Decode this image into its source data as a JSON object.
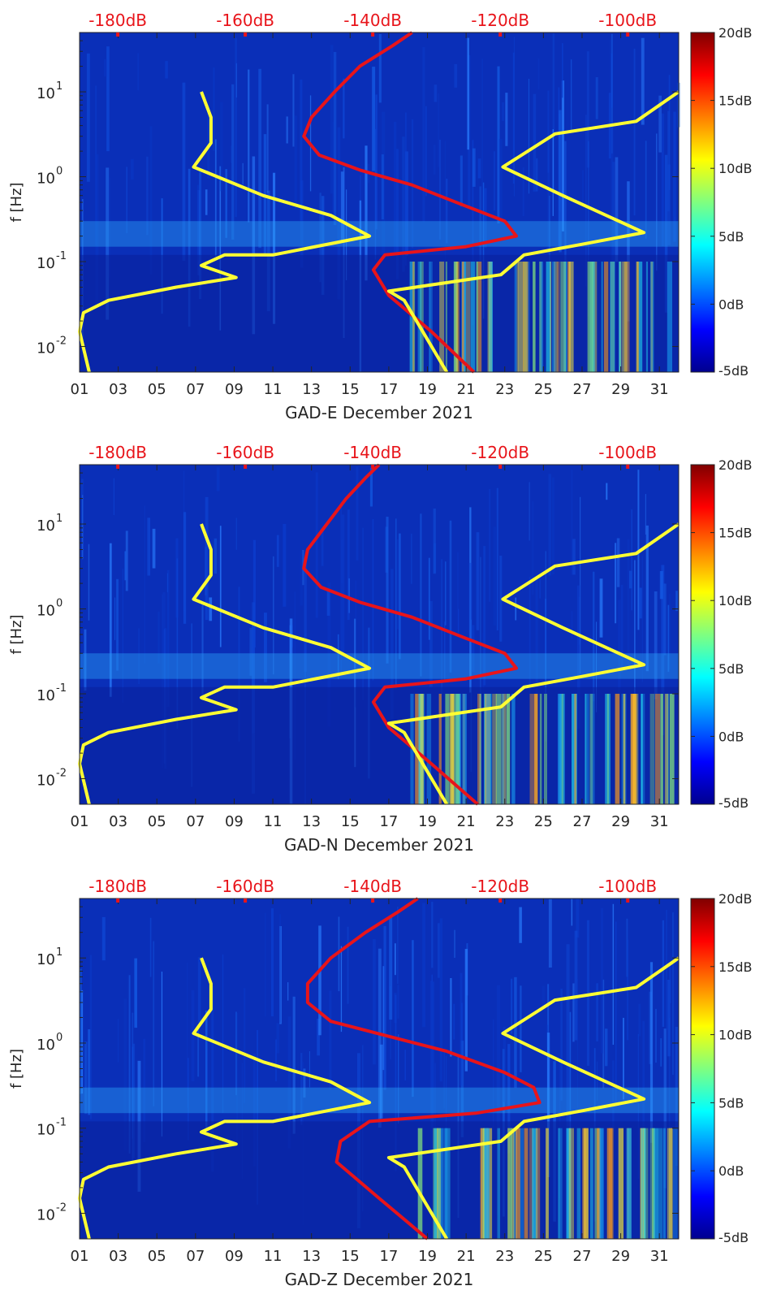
{
  "chart_data": [
    {
      "type": "heatmap",
      "xlabel": "GAD-E December 2021",
      "ylabel": "f [Hz]",
      "x_ticks": [
        "01",
        "03",
        "05",
        "07",
        "09",
        "11",
        "13",
        "15",
        "17",
        "19",
        "21",
        "23",
        "25",
        "27",
        "29",
        "31"
      ],
      "x_range": [
        1,
        32
      ],
      "y_scale": "log",
      "y_range": [
        0.005,
        50
      ],
      "y_ticks": [
        {
          "value": 0.01,
          "base": "10",
          "exp": "-2"
        },
        {
          "value": 0.1,
          "base": "10",
          "exp": "-1"
        },
        {
          "value": 1,
          "base": "10",
          "exp": "0"
        },
        {
          "value": 10,
          "base": "10",
          "exp": "1"
        }
      ],
      "top_axis": {
        "labels": [
          "-180dB",
          "-160dB",
          "-140dB",
          "-120dB",
          "-100dB"
        ],
        "values": [
          -180,
          -160,
          -140,
          -120,
          -100
        ],
        "range": [
          -186,
          -92
        ],
        "color": "#e8141a"
      },
      "colorbar": {
        "labels": [
          "20dB",
          "15dB",
          "10dB",
          "5dB",
          "0dB",
          "-5dB"
        ],
        "values": [
          20,
          15,
          10,
          5,
          0,
          -5
        ],
        "range": [
          -5,
          20
        ],
        "colormap": "jet"
      },
      "series": [
        {
          "color": "#e8141a",
          "points": [
            [
              18.2,
              50
            ],
            [
              17.2,
              35
            ],
            [
              15.5,
              20
            ],
            [
              14.2,
              10
            ],
            [
              13.0,
              5
            ],
            [
              12.6,
              3
            ],
            [
              13.4,
              1.8
            ],
            [
              15.5,
              1.2
            ],
            [
              18.2,
              0.8
            ],
            [
              21.0,
              0.45
            ],
            [
              23.0,
              0.3
            ],
            [
              23.6,
              0.2
            ],
            [
              21.0,
              0.15
            ],
            [
              16.8,
              0.12
            ],
            [
              16.2,
              0.08
            ],
            [
              17.0,
              0.04
            ],
            [
              19.2,
              0.015
            ],
            [
              21.4,
              0.005
            ]
          ]
        },
        {
          "color": "#ffff33",
          "points": [
            [
              7.3,
              10
            ],
            [
              7.8,
              5
            ],
            [
              7.8,
              2.5
            ],
            [
              6.9,
              1.3
            ],
            [
              10.5,
              0.6
            ],
            [
              14.0,
              0.35
            ],
            [
              16.0,
              0.2
            ],
            [
              11.0,
              0.12
            ],
            [
              8.5,
              0.12
            ],
            [
              7.3,
              0.09
            ],
            [
              9.1,
              0.065
            ],
            [
              6.0,
              0.05
            ],
            [
              2.5,
              0.035
            ],
            [
              1.2,
              0.025
            ],
            [
              1.0,
              0.015
            ],
            [
              1.5,
              0.005
            ]
          ]
        },
        {
          "color": "#ffff33",
          "points": [
            [
              32.0,
              10
            ],
            [
              29.8,
              4.5
            ],
            [
              25.6,
              3.2
            ],
            [
              22.9,
              1.3
            ],
            [
              26.0,
              0.6
            ],
            [
              30.2,
              0.22
            ],
            [
              27.0,
              0.16
            ],
            [
              24.0,
              0.12
            ],
            [
              22.8,
              0.07
            ],
            [
              17.0,
              0.045
            ],
            [
              17.8,
              0.035
            ],
            [
              20.0,
              0.005
            ]
          ]
        }
      ]
    },
    {
      "type": "heatmap",
      "xlabel": "GAD-N December 2021",
      "ylabel": "f [Hz]",
      "x_ticks": [
        "01",
        "03",
        "05",
        "07",
        "09",
        "11",
        "13",
        "15",
        "17",
        "19",
        "21",
        "23",
        "25",
        "27",
        "29",
        "31"
      ],
      "x_range": [
        1,
        32
      ],
      "y_scale": "log",
      "y_range": [
        0.005,
        50
      ],
      "y_ticks": [
        {
          "value": 0.01,
          "base": "10",
          "exp": "-2"
        },
        {
          "value": 0.1,
          "base": "10",
          "exp": "-1"
        },
        {
          "value": 1,
          "base": "10",
          "exp": "0"
        },
        {
          "value": 10,
          "base": "10",
          "exp": "1"
        }
      ],
      "top_axis": {
        "labels": [
          "-180dB",
          "-160dB",
          "-140dB",
          "-120dB",
          "-100dB"
        ],
        "values": [
          -180,
          -160,
          -140,
          -120,
          -100
        ],
        "range": [
          -186,
          -92
        ],
        "color": "#e8141a"
      },
      "colorbar": {
        "labels": [
          "20dB",
          "15dB",
          "10dB",
          "5dB",
          "0dB",
          "-5dB"
        ],
        "values": [
          20,
          15,
          10,
          5,
          0,
          -5
        ],
        "range": [
          -5,
          20
        ],
        "colormap": "jet"
      },
      "series": [
        {
          "color": "#e8141a",
          "points": [
            [
              16.5,
              50
            ],
            [
              15.8,
              35
            ],
            [
              14.8,
              20
            ],
            [
              13.8,
              10
            ],
            [
              12.8,
              5
            ],
            [
              12.6,
              3
            ],
            [
              13.5,
              1.8
            ],
            [
              15.5,
              1.2
            ],
            [
              18.2,
              0.8
            ],
            [
              21.0,
              0.45
            ],
            [
              23.0,
              0.3
            ],
            [
              23.6,
              0.2
            ],
            [
              21.0,
              0.15
            ],
            [
              16.8,
              0.12
            ],
            [
              16.2,
              0.08
            ],
            [
              17.0,
              0.04
            ],
            [
              19.2,
              0.015
            ],
            [
              21.6,
              0.005
            ]
          ]
        },
        {
          "color": "#ffff33",
          "points": [
            [
              7.3,
              10
            ],
            [
              7.8,
              5
            ],
            [
              7.8,
              2.5
            ],
            [
              6.9,
              1.3
            ],
            [
              10.5,
              0.6
            ],
            [
              14.0,
              0.35
            ],
            [
              16.0,
              0.2
            ],
            [
              11.0,
              0.12
            ],
            [
              8.5,
              0.12
            ],
            [
              7.3,
              0.09
            ],
            [
              9.1,
              0.065
            ],
            [
              6.0,
              0.05
            ],
            [
              2.5,
              0.035
            ],
            [
              1.2,
              0.025
            ],
            [
              1.0,
              0.015
            ],
            [
              1.5,
              0.005
            ]
          ]
        },
        {
          "color": "#ffff33",
          "points": [
            [
              32.0,
              10
            ],
            [
              29.8,
              4.5
            ],
            [
              25.6,
              3.2
            ],
            [
              22.9,
              1.3
            ],
            [
              26.0,
              0.6
            ],
            [
              30.2,
              0.22
            ],
            [
              27.0,
              0.16
            ],
            [
              24.0,
              0.12
            ],
            [
              22.8,
              0.07
            ],
            [
              17.0,
              0.045
            ],
            [
              17.8,
              0.035
            ],
            [
              20.0,
              0.005
            ]
          ]
        }
      ]
    },
    {
      "type": "heatmap",
      "xlabel": "GAD-Z December 2021",
      "ylabel": "f [Hz]",
      "x_ticks": [
        "01",
        "03",
        "05",
        "07",
        "09",
        "11",
        "13",
        "15",
        "17",
        "19",
        "21",
        "23",
        "25",
        "27",
        "29",
        "31"
      ],
      "x_range": [
        1,
        32
      ],
      "y_scale": "log",
      "y_range": [
        0.005,
        50
      ],
      "y_ticks": [
        {
          "value": 0.01,
          "base": "10",
          "exp": "-2"
        },
        {
          "value": 0.1,
          "base": "10",
          "exp": "-1"
        },
        {
          "value": 1,
          "base": "10",
          "exp": "0"
        },
        {
          "value": 10,
          "base": "10",
          "exp": "1"
        }
      ],
      "top_axis": {
        "labels": [
          "-180dB",
          "-160dB",
          "-140dB",
          "-120dB",
          "-100dB"
        ],
        "values": [
          -180,
          -160,
          -140,
          -120,
          -100
        ],
        "range": [
          -186,
          -92
        ],
        "color": "#e8141a"
      },
      "colorbar": {
        "labels": [
          "20dB",
          "15dB",
          "10dB",
          "5dB",
          "0dB",
          "-5dB"
        ],
        "values": [
          20,
          15,
          10,
          5,
          0,
          -5
        ],
        "range": [
          -5,
          20
        ],
        "colormap": "jet"
      },
      "series": [
        {
          "color": "#e8141a",
          "points": [
            [
              18.5,
              50
            ],
            [
              17.5,
              35
            ],
            [
              15.8,
              20
            ],
            [
              14.0,
              10
            ],
            [
              12.8,
              5
            ],
            [
              12.8,
              3
            ],
            [
              14.0,
              1.8
            ],
            [
              17.0,
              1.2
            ],
            [
              20.0,
              0.8
            ],
            [
              23.0,
              0.45
            ],
            [
              24.5,
              0.3
            ],
            [
              24.8,
              0.2
            ],
            [
              21.5,
              0.15
            ],
            [
              16.0,
              0.12
            ],
            [
              14.5,
              0.07
            ],
            [
              14.3,
              0.04
            ],
            [
              16.5,
              0.015
            ],
            [
              19.0,
              0.005
            ]
          ]
        },
        {
          "color": "#ffff33",
          "points": [
            [
              7.3,
              10
            ],
            [
              7.8,
              5
            ],
            [
              7.8,
              2.5
            ],
            [
              6.9,
              1.3
            ],
            [
              10.5,
              0.6
            ],
            [
              14.0,
              0.35
            ],
            [
              16.0,
              0.2
            ],
            [
              11.0,
              0.12
            ],
            [
              8.5,
              0.12
            ],
            [
              7.3,
              0.09
            ],
            [
              9.1,
              0.065
            ],
            [
              6.0,
              0.05
            ],
            [
              2.5,
              0.035
            ],
            [
              1.2,
              0.025
            ],
            [
              1.0,
              0.015
            ],
            [
              1.5,
              0.005
            ]
          ]
        },
        {
          "color": "#ffff33",
          "points": [
            [
              32.0,
              10
            ],
            [
              29.8,
              4.5
            ],
            [
              25.6,
              3.2
            ],
            [
              22.9,
              1.3
            ],
            [
              26.0,
              0.6
            ],
            [
              30.2,
              0.22
            ],
            [
              27.0,
              0.16
            ],
            [
              24.0,
              0.12
            ],
            [
              22.8,
              0.07
            ],
            [
              17.0,
              0.045
            ],
            [
              17.8,
              0.035
            ],
            [
              20.0,
              0.005
            ]
          ]
        }
      ]
    }
  ]
}
